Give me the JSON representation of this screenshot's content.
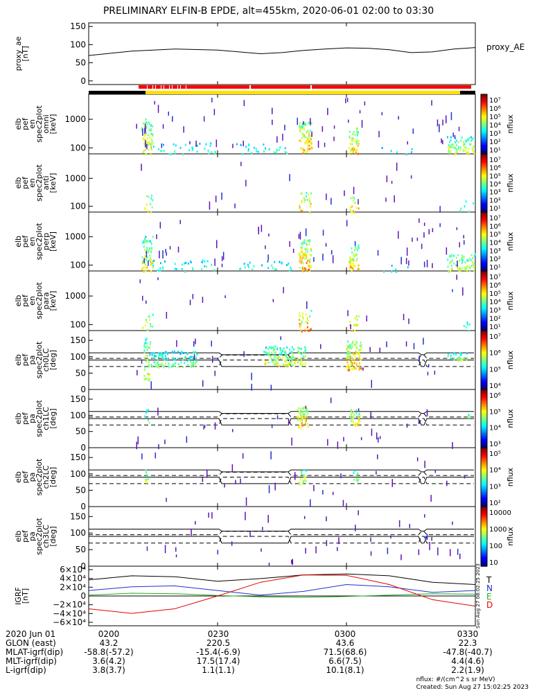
{
  "title": "PRELIMINARY ELFIN-B EPDE, alt=455km, 2020-06-01 02:00 to 03:30",
  "colors": {
    "black": "#000000",
    "blue": "#1f2fd0",
    "green": "#1db01d",
    "red": "#e00000",
    "bar_red": "#ff0000",
    "bar_yellow": "#ffe000"
  },
  "chart_data": [
    {
      "type": "line",
      "ylabel": "proxy_ae [nT]",
      "series_label": "proxy_AE",
      "yticks": [
        "150",
        "100",
        "50",
        "0"
      ],
      "ylim": [
        -10,
        160
      ],
      "x_minutes": [
        0,
        10,
        20,
        30,
        40,
        45,
        50,
        55,
        60,
        65,
        70,
        75,
        80,
        85,
        90
      ],
      "values": [
        70,
        82,
        88,
        85,
        75,
        78,
        84,
        88,
        91,
        90,
        86,
        78,
        80,
        88,
        92
      ]
    },
    {
      "type": "heatmap",
      "ylabel": [
        "elb",
        "pef",
        "en",
        "spec2plot",
        "omni",
        "[keV]"
      ],
      "yticks": [
        "1000",
        "100"
      ],
      "colorbar_label": "nflux",
      "colorbar_ticks": [
        "10⁷",
        "10⁶",
        "10⁵",
        "10⁴",
        "10³",
        "10²",
        "10¹"
      ]
    },
    {
      "type": "heatmap",
      "ylabel": [
        "elb",
        "pef",
        "en",
        "spec2plot",
        "anti",
        "[keV]"
      ],
      "yticks": [
        "1000",
        "100"
      ],
      "colorbar_label": "nflux",
      "colorbar_ticks": [
        "10⁷",
        "10⁶",
        "10⁵",
        "10⁴",
        "10³",
        "10²",
        "10¹"
      ]
    },
    {
      "type": "heatmap",
      "ylabel": [
        "elb",
        "pef",
        "en",
        "spec2plot",
        "perp",
        "[keV]"
      ],
      "yticks": [
        "1000",
        "100"
      ],
      "colorbar_label": "nflux",
      "colorbar_ticks": [
        "10⁷",
        "10⁶",
        "10⁵",
        "10⁴",
        "10³",
        "10²",
        "10¹"
      ]
    },
    {
      "type": "heatmap",
      "ylabel": [
        "elb",
        "pef",
        "en",
        "spec2plot",
        "para",
        "[keV]"
      ],
      "yticks": [
        "1000",
        "100"
      ],
      "colorbar_label": "nflux",
      "colorbar_ticks": [
        "10⁷",
        "10⁶",
        "10⁵",
        "10⁴",
        "10³",
        "10²",
        "10¹"
      ]
    },
    {
      "type": "heatmap",
      "ylabel": [
        "elb",
        "pef",
        "pa",
        "spec2plot",
        "ch0LC",
        "[deg]"
      ],
      "yticks": [
        "150",
        "100",
        "50",
        "0"
      ],
      "colorbar_label": "nflux",
      "colorbar_ticks": [
        "10⁷",
        "10⁶",
        "10⁵",
        "10⁴"
      ]
    },
    {
      "type": "heatmap",
      "ylabel": [
        "elb",
        "pef",
        "pa",
        "spec2plot",
        "ch1LC",
        "[deg]"
      ],
      "yticks": [
        "150",
        "100",
        "50",
        "0"
      ],
      "colorbar_label": "nflux",
      "colorbar_ticks": [
        "10⁶",
        "10⁵",
        "10⁴",
        "10³"
      ]
    },
    {
      "type": "heatmap",
      "ylabel": [
        "elb",
        "pef",
        "pa",
        "spec2plot",
        "ch2LC",
        "[deg]"
      ],
      "yticks": [
        "150",
        "100",
        "50",
        "0"
      ],
      "colorbar_label": "nflux",
      "colorbar_ticks": [
        "10⁵",
        "10⁴",
        "10³",
        "10²"
      ]
    },
    {
      "type": "heatmap",
      "ylabel": [
        "elb",
        "pef",
        "pa",
        "spec2plot",
        "ch3LC",
        "[deg]"
      ],
      "yticks": [
        "150",
        "100",
        "50",
        "0"
      ],
      "colorbar_label": "nflux",
      "colorbar_ticks": [
        "10000",
        "1000",
        "100",
        "10"
      ]
    },
    {
      "type": "line",
      "ylabel": [
        "IGRF",
        "[nT]"
      ],
      "yticks": [
        "6×10⁴",
        "4×10⁴",
        "2×10⁴",
        "0",
        "−2×10⁴",
        "−4×10⁴",
        "−6×10⁴"
      ],
      "ylim": [
        -65000,
        65000
      ],
      "x_minutes": [
        0,
        10,
        20,
        30,
        40,
        50,
        60,
        70,
        80,
        90
      ],
      "series": [
        {
          "name": "T",
          "color": "#000000",
          "values": [
            35000,
            44000,
            42000,
            32000,
            38000,
            46000,
            48000,
            44000,
            30000,
            25000
          ]
        },
        {
          "name": "N",
          "color": "#1f2fd0",
          "values": [
            12000,
            20000,
            22000,
            12000,
            2000,
            10000,
            25000,
            20000,
            8000,
            12000
          ]
        },
        {
          "name": "E",
          "color": "#1db01d",
          "values": [
            2000,
            6000,
            5000,
            1000,
            -2000,
            -3000,
            -1000,
            2000,
            5000,
            4000
          ]
        },
        {
          "name": "D",
          "color": "#e00000",
          "values": [
            -28000,
            -38000,
            -28000,
            0,
            30000,
            46000,
            45000,
            25000,
            -8000,
            -22000
          ]
        }
      ]
    }
  ],
  "side_label": "Sun Aug 27 08:02:25 2023",
  "footer": {
    "rows": [
      {
        "name": "2020 Jun 01",
        "values": [
          "0200",
          "0230",
          "0300",
          "0330"
        ]
      },
      {
        "name": "GLON (east)",
        "values": [
          "43.2",
          "220.5",
          "43.6",
          "22.3"
        ]
      },
      {
        "name": "MLAT-igrf(dip)",
        "values": [
          "-58.8(-57.2)",
          "-15.4(-6.9)",
          "71.5(68.6)",
          "-47.8(-40.7)"
        ]
      },
      {
        "name": "MLT-igrf(dip)",
        "values": [
          "3.6(4.2)",
          "17.5(17.4)",
          "6.6(7.5)",
          "4.4(4.6)"
        ]
      },
      {
        "name": "L-igrf(dip)",
        "values": [
          "3.8(3.7)",
          "1.1(1.1)",
          "10.1(8.1)",
          "2.2(1.9)"
        ]
      }
    ],
    "note1": "nflux: #/(cm^2 s sr MeV)",
    "note2": "Created: Sun Aug 27 15:02:25 2023"
  }
}
